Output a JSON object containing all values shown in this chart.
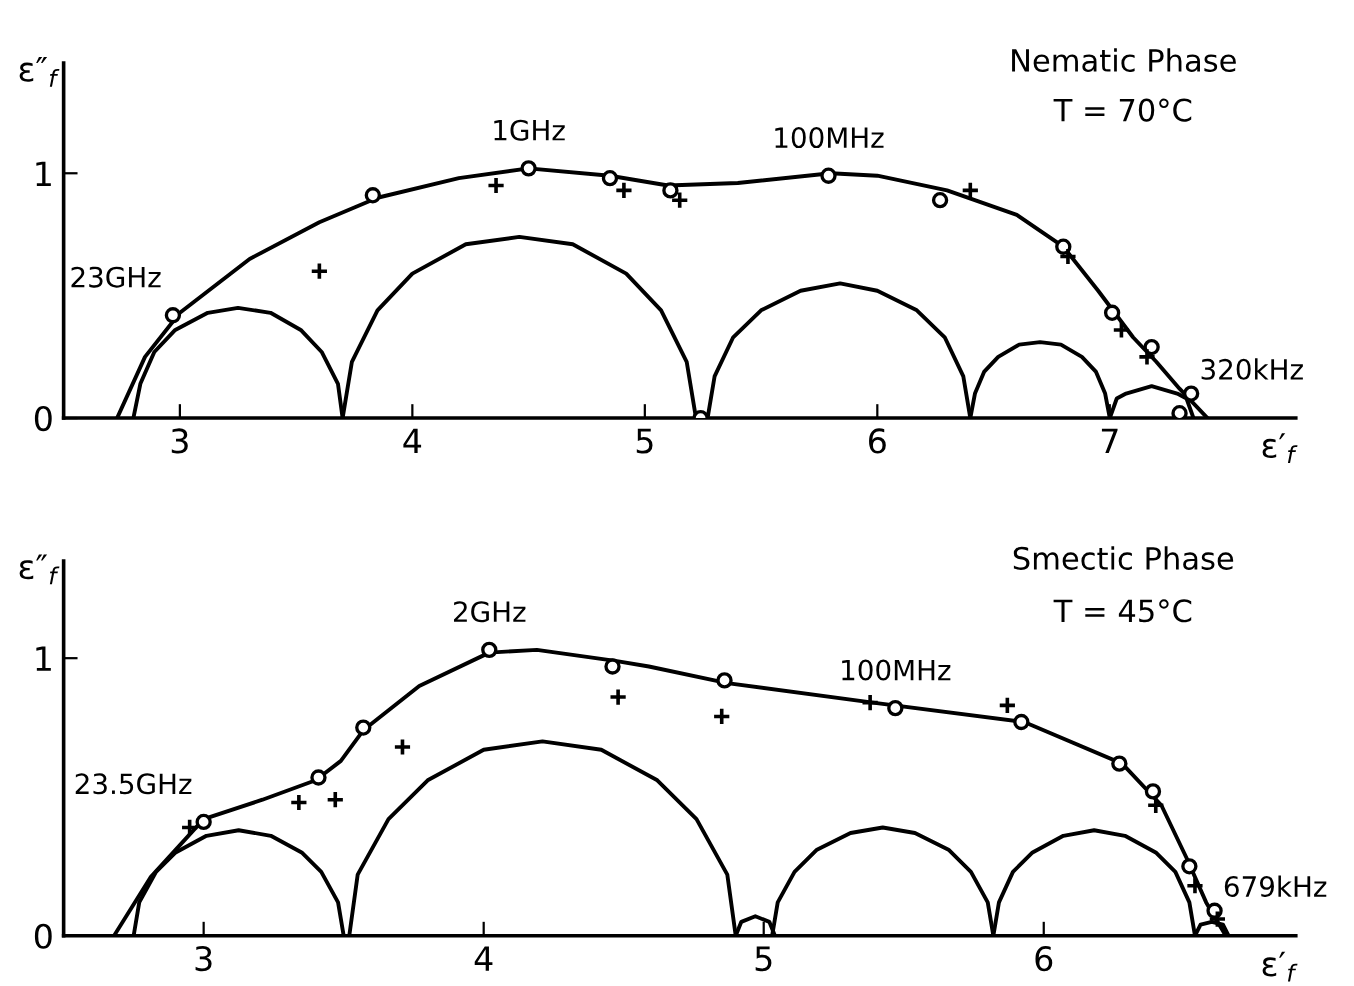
{
  "chart_data": [
    {
      "type": "line",
      "title": "Nematic Phase",
      "subtitle": "T = 70°C",
      "xlabel": "ε′$_{f}$",
      "ylabel": "ε″$_{f}$",
      "xlim": [
        2.5,
        7.8
      ],
      "ylim": [
        0,
        1.45
      ],
      "xticks": [
        3,
        4,
        5,
        6,
        7
      ],
      "yticks": [
        0,
        1
      ],
      "grid": false,
      "legend": false,
      "series": [
        {
          "color": "#000000",
          "marker": "none",
          "x": [
            2.73,
            2.85,
            3.0,
            3.3,
            3.6,
            3.85,
            4.2,
            4.5,
            4.85,
            5.1,
            5.4,
            5.8,
            6.0,
            6.3,
            6.6,
            6.8,
            6.95,
            7.1,
            7.2,
            7.3,
            7.42
          ],
          "values": [
            0,
            0.25,
            0.43,
            0.65,
            0.8,
            0.9,
            0.98,
            1.02,
            0.99,
            0.95,
            0.96,
            1.0,
            0.99,
            0.93,
            0.83,
            0.7,
            0.52,
            0.33,
            0.23,
            0.12,
            0
          ]
        },
        {
          "color": "#000000",
          "marker": "none",
          "x": [
            2.8,
            2.83,
            2.89,
            2.98,
            3.12,
            3.25,
            3.39,
            3.52,
            3.61,
            3.68,
            3.7
          ],
          "values": [
            0,
            0.14,
            0.27,
            0.36,
            0.43,
            0.45,
            0.43,
            0.36,
            0.27,
            0.14,
            0
          ]
        },
        {
          "color": "#000000",
          "marker": "none",
          "x": [
            3.7,
            3.74,
            3.85,
            4.0,
            4.23,
            4.46,
            4.69,
            4.92,
            5.07,
            5.18,
            5.22
          ],
          "values": [
            0,
            0.23,
            0.44,
            0.59,
            0.71,
            0.74,
            0.71,
            0.59,
            0.44,
            0.23,
            0
          ]
        },
        {
          "color": "#000000",
          "marker": "none",
          "x": [
            5.27,
            5.3,
            5.38,
            5.5,
            5.67,
            5.84,
            6.0,
            6.17,
            6.29,
            6.37,
            6.4
          ],
          "values": [
            0,
            0.17,
            0.33,
            0.44,
            0.52,
            0.55,
            0.52,
            0.44,
            0.33,
            0.17,
            0
          ]
        },
        {
          "color": "#000000",
          "marker": "none",
          "x": [
            6.4,
            6.42,
            6.46,
            6.52,
            6.61,
            6.7,
            6.79,
            6.88,
            6.94,
            6.98,
            7.0
          ],
          "values": [
            0,
            0.1,
            0.19,
            0.25,
            0.3,
            0.31,
            0.3,
            0.25,
            0.19,
            0.1,
            0
          ]
        },
        {
          "color": "#000000",
          "marker": "none",
          "x": [
            7.0,
            7.03,
            7.07,
            7.18,
            7.29,
            7.33,
            7.36
          ],
          "values": [
            0,
            0.08,
            0.1,
            0.13,
            0.1,
            0.08,
            0
          ]
        },
        {
          "type": "scatter",
          "color": "#000000",
          "marker": "circle",
          "x": [
            2.97,
            3.83,
            4.5,
            4.85,
            5.11,
            5.24,
            5.79,
            6.27,
            6.8,
            7.01,
            7.18,
            7.35,
            7.3
          ],
          "values": [
            0.42,
            0.91,
            1.02,
            0.98,
            0.93,
            0.0,
            0.99,
            0.89,
            0.7,
            0.43,
            0.29,
            0.1,
            0.02
          ]
        },
        {
          "type": "scatter",
          "color": "#000000",
          "marker": "cross",
          "x": [
            3.6,
            4.36,
            4.91,
            5.15,
            6.4,
            6.82,
            7.05,
            7.16
          ],
          "values": [
            0.6,
            0.95,
            0.93,
            0.89,
            0.93,
            0.66,
            0.36,
            0.25
          ]
        }
      ],
      "annotations": [
        {
          "text": "23GHz",
          "x": 2.97,
          "y": 0.42
        },
        {
          "text": "1GHz",
          "x": 4.5,
          "y": 1.02
        },
        {
          "text": "100MHz",
          "x": 5.79,
          "y": 0.99
        },
        {
          "text": "320kHz",
          "x": 7.35,
          "y": 0.1
        }
      ]
    },
    {
      "type": "line",
      "title": "Smectic Phase",
      "subtitle": "T = 45°C",
      "xlabel": "ε′$_{f}$",
      "ylabel": "ε″$_{f}$",
      "xlim": [
        2.5,
        6.9
      ],
      "ylim": [
        0,
        1.35
      ],
      "xticks": [
        3,
        4,
        5,
        6
      ],
      "yticks": [
        0,
        1
      ],
      "grid": false,
      "legend": false,
      "series": [
        {
          "color": "#000000",
          "marker": "none",
          "x": [
            2.68,
            2.81,
            3.0,
            3.21,
            3.4,
            3.49,
            3.57,
            3.77,
            4.02,
            4.19,
            4.47,
            4.59,
            4.87,
            5.39,
            5.93,
            6.28,
            6.42,
            6.51,
            6.58,
            6.65
          ],
          "values": [
            0,
            0.21,
            0.42,
            0.49,
            0.56,
            0.63,
            0.74,
            0.9,
            1.02,
            1.03,
            0.99,
            0.97,
            0.91,
            0.84,
            0.77,
            0.62,
            0.47,
            0.28,
            0.12,
            0
          ]
        },
        {
          "color": "#000000",
          "marker": "none",
          "x": [
            2.75,
            2.77,
            2.83,
            2.9,
            3.01,
            3.125,
            3.24,
            3.35,
            3.42,
            3.48,
            3.5
          ],
          "values": [
            0,
            0.12,
            0.23,
            0.3,
            0.36,
            0.38,
            0.36,
            0.3,
            0.23,
            0.12,
            0
          ]
        },
        {
          "color": "#000000",
          "marker": "none",
          "x": [
            3.52,
            3.55,
            3.66,
            3.8,
            4.0,
            4.21,
            4.42,
            4.62,
            4.76,
            4.87,
            4.9
          ],
          "values": [
            0,
            0.22,
            0.42,
            0.56,
            0.67,
            0.7,
            0.67,
            0.56,
            0.42,
            0.22,
            0
          ]
        },
        {
          "color": "#000000",
          "marker": "none",
          "x": [
            4.9,
            4.92,
            4.97,
            5.02,
            5.04
          ],
          "values": [
            0,
            0.05,
            0.07,
            0.05,
            0
          ]
        },
        {
          "color": "#000000",
          "marker": "none",
          "x": [
            5.03,
            5.05,
            5.11,
            5.19,
            5.31,
            5.425,
            5.54,
            5.66,
            5.74,
            5.8,
            5.82
          ],
          "values": [
            0,
            0.12,
            0.23,
            0.31,
            0.37,
            0.39,
            0.37,
            0.31,
            0.23,
            0.12,
            0
          ]
        },
        {
          "color": "#000000",
          "marker": "none",
          "x": [
            5.82,
            5.84,
            5.89,
            5.96,
            6.07,
            6.18,
            6.29,
            6.4,
            6.47,
            6.52,
            6.54
          ],
          "values": [
            0,
            0.12,
            0.23,
            0.3,
            0.36,
            0.38,
            0.36,
            0.3,
            0.23,
            0.12,
            0
          ]
        },
        {
          "color": "#000000",
          "marker": "none",
          "x": [
            6.54,
            6.56,
            6.6,
            6.64,
            6.66
          ],
          "values": [
            0,
            0.04,
            0.05,
            0.04,
            0
          ]
        },
        {
          "type": "scatter",
          "color": "#000000",
          "marker": "circle",
          "x": [
            3.0,
            3.41,
            3.57,
            4.02,
            4.46,
            4.86,
            5.47,
            5.92,
            6.27,
            6.39,
            6.52,
            6.61
          ],
          "values": [
            0.41,
            0.57,
            0.75,
            1.03,
            0.97,
            0.92,
            0.82,
            0.77,
            0.62,
            0.52,
            0.25,
            0.09
          ]
        },
        {
          "type": "scatter",
          "color": "#000000",
          "marker": "cross",
          "x": [
            2.95,
            3.34,
            3.47,
            3.71,
            4.48,
            4.85,
            5.38,
            5.87,
            6.4,
            6.54,
            6.62
          ],
          "values": [
            0.39,
            0.48,
            0.49,
            0.68,
            0.86,
            0.79,
            0.84,
            0.83,
            0.47,
            0.18,
            0.06
          ]
        }
      ],
      "annotations": [
        {
          "text": "23.5GHz",
          "x": 3.0,
          "y": 0.41
        },
        {
          "text": "2GHz",
          "x": 4.02,
          "y": 1.03
        },
        {
          "text": "100MHz",
          "x": 5.47,
          "y": 0.82
        },
        {
          "text": "679kHz",
          "x": 6.61,
          "y": 0.09
        }
      ]
    }
  ]
}
